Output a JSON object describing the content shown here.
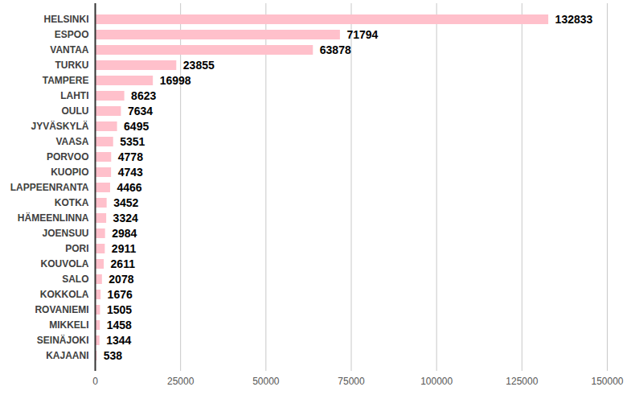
{
  "chart_data": {
    "type": "bar",
    "orientation": "horizontal",
    "categories": [
      "HELSINKI",
      "ESPOO",
      "VANTAA",
      "TURKU",
      "TAMPERE",
      "LAHTI",
      "OULU",
      "JYVÄSKYLÄ",
      "VAASA",
      "PORVOO",
      "KUOPIO",
      "LAPPEENRANTA",
      "KOTKA",
      "HÄMEENLINNA",
      "JOENSUU",
      "PORI",
      "KOUVOLA",
      "SALO",
      "KOKKOLA",
      "ROVANIEMI",
      "MIKKELI",
      "SEINÄJOKI",
      "KAJAANI"
    ],
    "values": [
      132833,
      71794,
      63878,
      23855,
      16998,
      8623,
      7634,
      6495,
      5351,
      4778,
      4743,
      4466,
      3452,
      3324,
      2984,
      2911,
      2611,
      2078,
      1676,
      1505,
      1458,
      1344,
      538
    ],
    "color": "#ffc0cb",
    "xlim": [
      0,
      150000
    ],
    "xticks": [
      0,
      25000,
      50000,
      75000,
      100000,
      125000,
      150000
    ],
    "grid": true,
    "data_labels": true
  }
}
